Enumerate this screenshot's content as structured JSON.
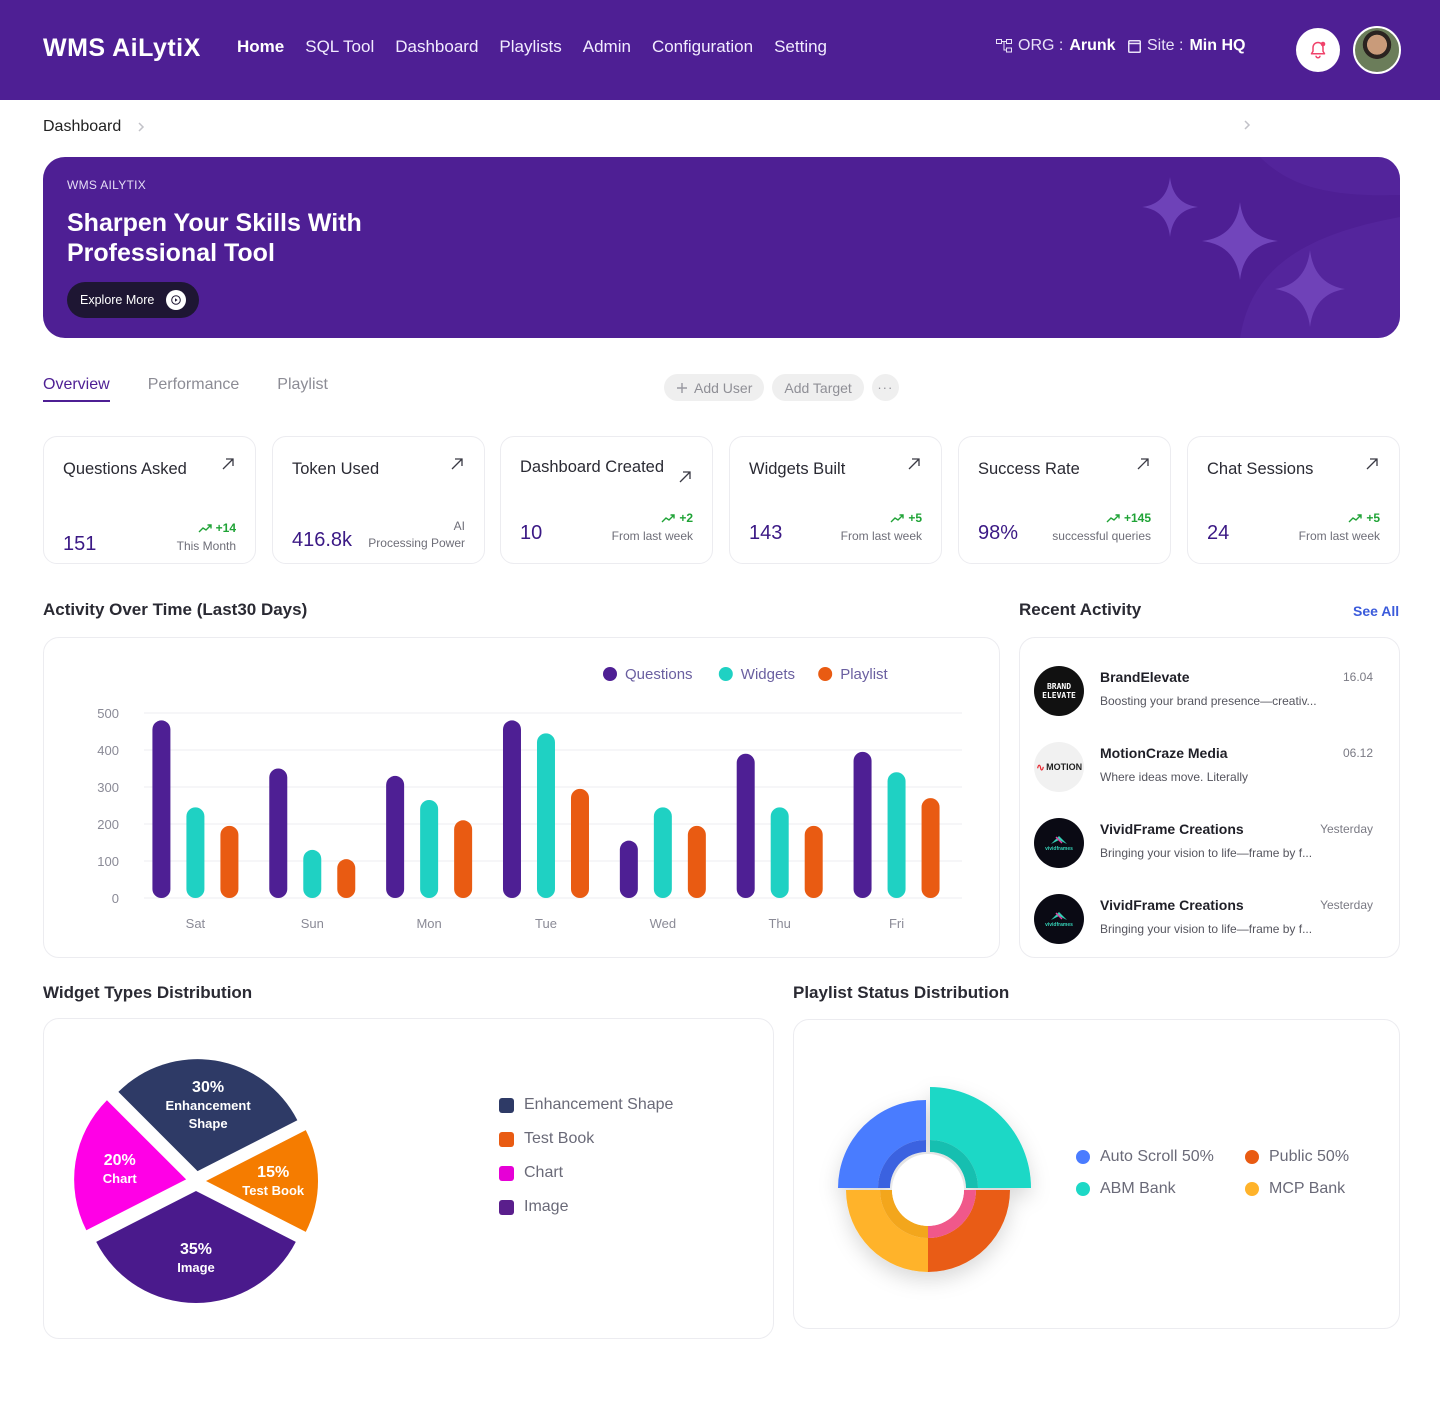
{
  "header": {
    "logo": "WMS AiLytiX",
    "nav": [
      "Home",
      "SQL Tool",
      "Dashboard",
      "Playlists",
      "Admin",
      "Configuration",
      "Setting"
    ],
    "org_label": "ORG :",
    "org_value": "Arunk",
    "site_label": "Site :",
    "site_value": "Min HQ"
  },
  "breadcrumb": {
    "current": "Dashboard"
  },
  "hero": {
    "eyebrow": "WMS AILYTIX",
    "title": "Sharpen  Your Skills With Professional Tool",
    "button": "Explore More"
  },
  "tabs": [
    "Overview",
    "Performance",
    "Playlist"
  ],
  "actions": {
    "add_user": "Add User",
    "add_target": "Add Target",
    "more": "···"
  },
  "stats": [
    {
      "label": "Questions Asked",
      "value": "151",
      "delta": "+14",
      "sub": "This Month"
    },
    {
      "label": "Token Used",
      "value": "416.8k",
      "delta": "",
      "sub_top": "AI",
      "sub": "Processing Power"
    },
    {
      "label": "Dashboard Created",
      "value": "10",
      "delta": "+2",
      "sub": "From last week"
    },
    {
      "label": "Widgets Built",
      "value": "143",
      "delta": "+5",
      "sub": "From last week"
    },
    {
      "label": "Success Rate",
      "value": "98%",
      "delta": "+145",
      "sub": "successful queries"
    },
    {
      "label": "Chat Sessions",
      "value": "24",
      "delta": "+5",
      "sub": "From last week"
    }
  ],
  "activity_chart": {
    "title": "Activity Over Time (Last30 Days)",
    "chart_data": {
      "type": "bar",
      "categories": [
        "Sat",
        "Sun",
        "Mon",
        "Tue",
        "Wed",
        "Thu",
        "Fri"
      ],
      "series": [
        {
          "name": "Questions",
          "color": "#4e1f94",
          "values": [
            480,
            350,
            330,
            480,
            155,
            390,
            395
          ]
        },
        {
          "name": "Widgets",
          "color": "#1fd1c3",
          "values": [
            245,
            130,
            265,
            445,
            245,
            245,
            340
          ]
        },
        {
          "name": "Playlist",
          "color": "#e95b12",
          "values": [
            195,
            105,
            210,
            295,
            195,
            195,
            270
          ]
        }
      ],
      "yticks": [
        0,
        100,
        200,
        300,
        400,
        500
      ],
      "ylim": [
        0,
        500
      ],
      "grid": true,
      "legend": "top"
    }
  },
  "recent_activity": {
    "title": "Recent Activity",
    "see_all": "See All",
    "items": [
      {
        "name": "BrandElevate",
        "desc": "Boosting your brand presence—creativ...",
        "time": "16.04",
        "avatar_text": "BRAND ELEVATE",
        "avatar_bg": "#111111",
        "avatar_fg": "#ffffff"
      },
      {
        "name": "MotionCraze Media",
        "desc": "Where ideas move. Literally",
        "time": "06.12",
        "avatar_text": "MOTION",
        "avatar_bg": "#f1f1f1",
        "avatar_fg": "#222222"
      },
      {
        "name": "VividFrame Creations",
        "desc": "Bringing your vision to life—frame by f...",
        "time": "Yesterday",
        "avatar_text": "vividframes",
        "avatar_bg": "#0a0a14",
        "avatar_fg": "#35d0b6"
      },
      {
        "name": "VividFrame Creations",
        "desc": "Bringing your vision to life—frame by f...",
        "time": "Yesterday",
        "avatar_text": "vividframes",
        "avatar_bg": "#0a0a14",
        "avatar_fg": "#35d0b6"
      }
    ]
  },
  "widget_types": {
    "title": "Widget Types Distribution",
    "chart_data": {
      "type": "pie",
      "slices": [
        {
          "label": "Enhancement Shape",
          "value": 30,
          "pct_text": "30%",
          "label_lines": [
            "Enhancement",
            "Shape"
          ],
          "color": "#2e3a66"
        },
        {
          "label": "Test Book",
          "value": 15,
          "pct_text": "15%",
          "label_lines": [
            "Test Book"
          ],
          "color": "#f57c00"
        },
        {
          "label": "Image",
          "value": 35,
          "pct_text": "35%",
          "label_lines": [
            "Image"
          ],
          "color": "#4a1a8c"
        },
        {
          "label": "Chart",
          "value": 20,
          "pct_text": "20%",
          "label_lines": [
            "Chart"
          ],
          "color": "#ff00e6"
        }
      ],
      "legend": [
        {
          "label": "Enhancement Shape",
          "color": "#2e3a66"
        },
        {
          "label": "Test Book",
          "color": "#e95b12"
        },
        {
          "label": "Chart",
          "color": "#e600d6"
        },
        {
          "label": "Image",
          "color": "#5a1e8c"
        }
      ]
    }
  },
  "playlist_status": {
    "title": "Playlist Status Distribution",
    "chart_data": {
      "type": "pie",
      "segments": [
        {
          "label": "ABM Bank",
          "color": "#1dd8c6",
          "inner": "#15bfb0"
        },
        {
          "label": "Public",
          "color": "#e95b12",
          "inner": "#f0588a"
        },
        {
          "label": "MCP Bank",
          "color": "#ffb32a",
          "inner": "#f3a61e"
        },
        {
          "label": "Auto Scroll",
          "color": "#4a7cff",
          "inner": "#3a62e0"
        }
      ],
      "legend": [
        {
          "label": "Auto Scroll 50%",
          "color": "#4a7cff"
        },
        {
          "label": "Public 50%",
          "color": "#e95b12"
        },
        {
          "label": "ABM Bank",
          "color": "#1dd8c6"
        },
        {
          "label": "MCP Bank",
          "color": "#ffb32a"
        }
      ]
    }
  }
}
